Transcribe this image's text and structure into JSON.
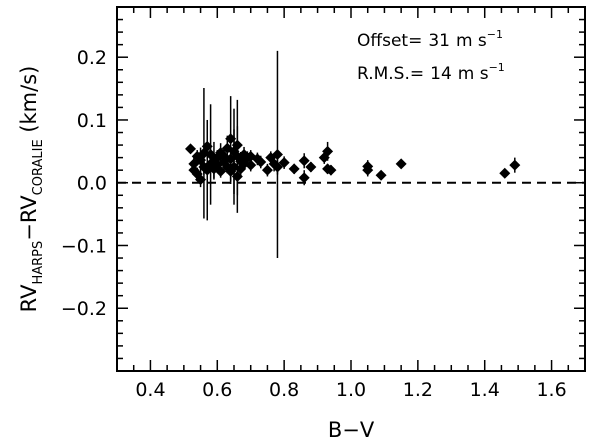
{
  "chart_data": {
    "type": "scatter",
    "title": "",
    "xlabel": "B−V",
    "ylabel": {
      "prefix": "RV",
      "sub1": "HARPS",
      "dash": "−RV",
      "sub2": "CORALIE",
      "unit": " (km/s)"
    },
    "xlim": [
      0.3,
      1.7
    ],
    "ylim": [
      -0.3,
      0.28
    ],
    "xticks": [
      0.4,
      0.6,
      0.8,
      1.0,
      1.2,
      1.4,
      1.6
    ],
    "xtick_labels": [
      "0.4",
      "0.6",
      "0.8",
      "1.0",
      "1.2",
      "1.4",
      "1.6"
    ],
    "yticks": [
      -0.2,
      -0.1,
      0.0,
      0.1,
      0.2
    ],
    "ytick_labels": [
      "−0.2",
      "−0.1",
      "0.0",
      "0.1",
      "0.2"
    ],
    "reference_line": {
      "y": 0.0,
      "style": "dashed"
    },
    "grid": false,
    "annotations": [
      {
        "label": "Offset=",
        "value": "31",
        "unit": "m s",
        "exp": "−1"
      },
      {
        "label": "R.M.S.=",
        "value": "14",
        "unit": "m s",
        "exp": "−1"
      }
    ],
    "series": [
      {
        "marker": "diamond",
        "points": [
          [
            0.52,
            0.054,
            0.006
          ],
          [
            0.53,
            0.03,
            0.01
          ],
          [
            0.53,
            0.02,
            0.008
          ],
          [
            0.54,
            0.014,
            0.01
          ],
          [
            0.54,
            0.042,
            0.01
          ],
          [
            0.55,
            0.036,
            0.02
          ],
          [
            0.55,
            0.005,
            0.012
          ],
          [
            0.56,
            0.047,
            0.104
          ],
          [
            0.56,
            0.025,
            0.012
          ],
          [
            0.57,
            0.02,
            0.08
          ],
          [
            0.57,
            0.058,
            0.015
          ],
          [
            0.58,
            0.045,
            0.08
          ],
          [
            0.58,
            0.03,
            0.012
          ],
          [
            0.59,
            0.035,
            0.03
          ],
          [
            0.59,
            0.022,
            0.015
          ],
          [
            0.6,
            0.04,
            0.012
          ],
          [
            0.6,
            0.028,
            0.01
          ],
          [
            0.61,
            0.048,
            0.015
          ],
          [
            0.61,
            0.018,
            0.01
          ],
          [
            0.62,
            0.033,
            0.015
          ],
          [
            0.62,
            0.042,
            0.012
          ],
          [
            0.63,
            0.025,
            0.01
          ],
          [
            0.63,
            0.055,
            0.02
          ],
          [
            0.64,
            0.07,
            0.068
          ],
          [
            0.64,
            0.038,
            0.015
          ],
          [
            0.64,
            0.018,
            0.02
          ],
          [
            0.65,
            0.05,
            0.068
          ],
          [
            0.65,
            0.025,
            0.06
          ],
          [
            0.66,
            0.042,
            0.09
          ],
          [
            0.66,
            0.01,
            0.03
          ],
          [
            0.66,
            0.06,
            0.03
          ],
          [
            0.67,
            0.034,
            0.015
          ],
          [
            0.67,
            0.022,
            0.01
          ],
          [
            0.68,
            0.045,
            0.012
          ],
          [
            0.68,
            0.03,
            0.01
          ],
          [
            0.69,
            0.04,
            0.01
          ],
          [
            0.7,
            0.028,
            0.01
          ],
          [
            0.7,
            0.042,
            0.01
          ],
          [
            0.72,
            0.038,
            0.01
          ],
          [
            0.73,
            0.033,
            0.01
          ],
          [
            0.75,
            0.02,
            0.01
          ],
          [
            0.76,
            0.04,
            0.01
          ],
          [
            0.77,
            0.03,
            0.012
          ],
          [
            0.78,
            0.045,
            0.165
          ],
          [
            0.78,
            0.025,
            0.012
          ],
          [
            0.8,
            0.032,
            0.01
          ],
          [
            0.83,
            0.022,
            0.008
          ],
          [
            0.86,
            0.035,
            0.012
          ],
          [
            0.86,
            0.008,
            0.012
          ],
          [
            0.88,
            0.025,
            0.008
          ],
          [
            0.92,
            0.04,
            0.01
          ],
          [
            0.93,
            0.05,
            0.015
          ],
          [
            0.93,
            0.022,
            0.008
          ],
          [
            0.94,
            0.02,
            0.008
          ],
          [
            1.05,
            0.02,
            0.01
          ],
          [
            1.05,
            0.026,
            0.01
          ],
          [
            1.09,
            0.012,
            0.005
          ],
          [
            1.15,
            0.03,
            0.005
          ],
          [
            1.46,
            0.015,
            0.005
          ],
          [
            1.49,
            0.028,
            0.012
          ]
        ]
      }
    ]
  }
}
